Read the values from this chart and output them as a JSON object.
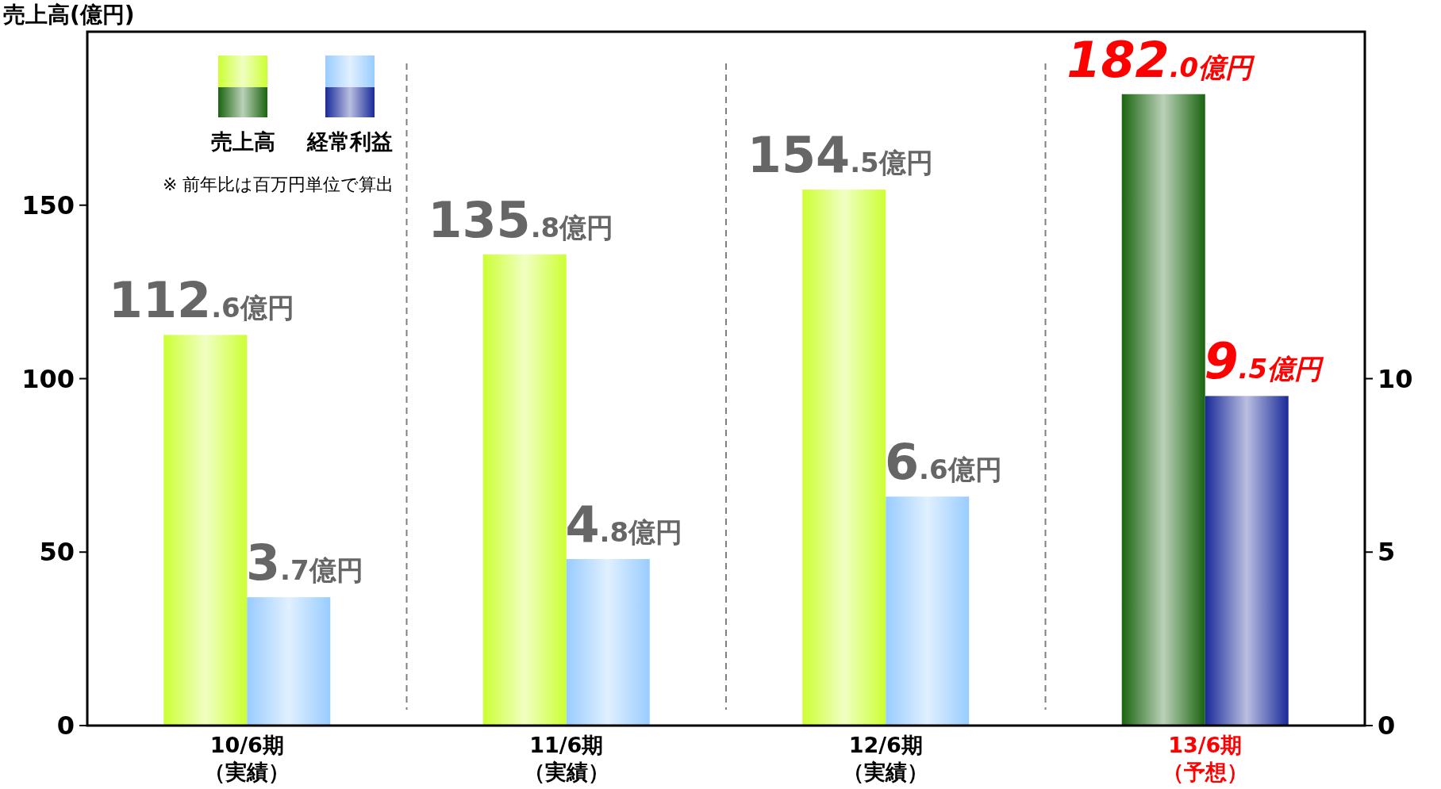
{
  "chart_data": {
    "type": "bar",
    "ylabel": "売上高(億円)",
    "categories": [
      "10/6期（実績）",
      "11/6期（実績）",
      "12/6期（実績）",
      "13/6期（予想）"
    ],
    "series": [
      {
        "name": "売上高",
        "colors": [
          "#ccff33",
          "#ccff33",
          "#ccff33",
          "#1a6410"
        ],
        "values": [
          112.6,
          135.8,
          154.5,
          182.0
        ],
        "value_labels": [
          "112.6億円",
          "135.8億円",
          "154.5億円",
          "182.0億円"
        ]
      },
      {
        "name": "経常利益",
        "axis": "y2",
        "colors": [
          "#99ccff",
          "#99ccff",
          "#99ccff",
          "#1a2a99"
        ],
        "values": [
          3.7,
          4.8,
          6.6,
          9.5
        ],
        "value_labels": [
          "3.7億円",
          "4.8億円",
          "6.6億円",
          "9.5億円"
        ]
      }
    ],
    "ylim": [
      0,
      200
    ],
    "yticks": [
      0,
      50,
      100,
      150
    ],
    "y2lim": [
      0,
      20
    ],
    "y2ticks": [
      0,
      5,
      10
    ],
    "legend": "top left",
    "annotations": [
      "※  前年比は百万円単位で算出"
    ]
  }
}
